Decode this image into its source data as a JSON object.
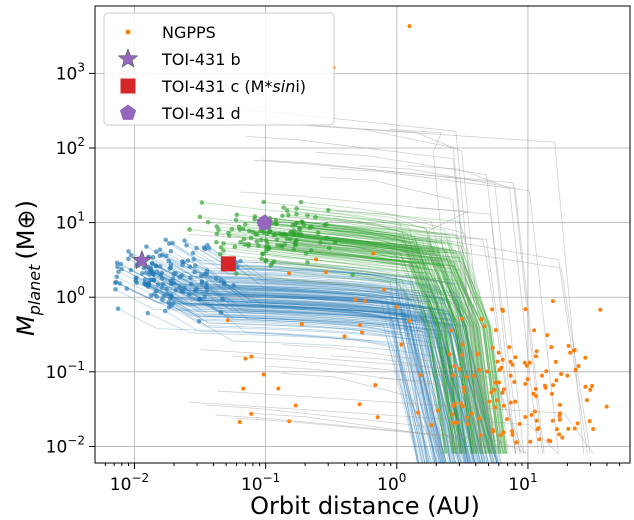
{
  "chart_data": {
    "type": "scatter",
    "xlabel": "Orbit distance (AU)",
    "ylabel_main": "M",
    "ylabel_sub": "planet",
    "ylabel_unit": "(M⊕)",
    "x_scale": "log",
    "y_scale": "log",
    "xlim": [
      0.005,
      60
    ],
    "ylim": [
      0.006,
      8000
    ],
    "grid": true,
    "legend_position": "top-left",
    "x_ticks": [
      {
        "value": 0.01,
        "base": "10",
        "exp": "−2"
      },
      {
        "value": 0.1,
        "base": "10",
        "exp": "−1"
      },
      {
        "value": 1,
        "base": "10",
        "exp": "0"
      },
      {
        "value": 10,
        "base": "10",
        "exp": "1"
      }
    ],
    "y_ticks": [
      {
        "value": 0.01,
        "base": "10",
        "exp": "−2"
      },
      {
        "value": 0.1,
        "base": "10",
        "exp": "−1"
      },
      {
        "value": 1,
        "base": "10",
        "exp": "0"
      },
      {
        "value": 10,
        "base": "10",
        "exp": "1"
      },
      {
        "value": 100,
        "base": "10",
        "exp": "2"
      },
      {
        "value": 1000,
        "base": "10",
        "exp": "3"
      }
    ],
    "legend": [
      {
        "label": "NGPPS",
        "marker": "dot",
        "color": "#ff7f0e"
      },
      {
        "label": "TOI-431 b",
        "marker": "star",
        "color": "#9467bd"
      },
      {
        "label_pre": "TOI-431 c (M*",
        "label_italic": "sin",
        "label_post": "i)",
        "marker": "square",
        "color": "#d62728"
      },
      {
        "label": "TOI-431 d",
        "marker": "pentagon",
        "color": "#9467bd"
      }
    ],
    "series": [
      {
        "name": "TOI-431 b",
        "marker": "star",
        "color": "#9467bd",
        "x": [
          0.0114
        ],
        "y": [
          3.1
        ]
      },
      {
        "name": "TOI-431 c (M*sini)",
        "marker": "square",
        "color": "#d62728",
        "x": [
          0.052
        ],
        "y": [
          2.8
        ]
      },
      {
        "name": "TOI-431 d",
        "marker": "pentagon",
        "color": "#9467bd",
        "x": [
          0.098
        ],
        "y": [
          9.9
        ]
      }
    ],
    "colors": {
      "ngpps": "#ff7f0e",
      "blue_tracks": "#1f77b4",
      "green_tracks": "#2ca02c",
      "grey_tracks": "#9a9a9a",
      "grid": "#b0b0b0"
    }
  }
}
